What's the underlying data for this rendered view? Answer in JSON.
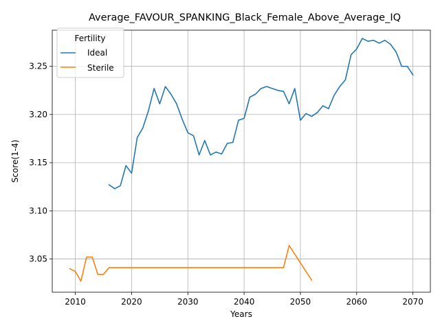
{
  "chart_data": {
    "type": "line",
    "title": "Average_FAVOUR_SPANKING_Black_Female_Above_Average_IQ",
    "xlabel": "Years",
    "ylabel": "Score(1-4)",
    "xlim": [
      2005.9,
      2073.1
    ],
    "ylim": [
      3.0155,
      3.2875
    ],
    "x_ticks": [
      2010,
      2020,
      2030,
      2040,
      2050,
      2060,
      2070
    ],
    "y_ticks": [
      3.05,
      3.1,
      3.15,
      3.2,
      3.25
    ],
    "x_tick_labels": [
      "2010",
      "2020",
      "2030",
      "2040",
      "2050",
      "2060",
      "2070"
    ],
    "y_tick_labels": [
      "3.05",
      "3.10",
      "3.15",
      "3.20",
      "3.25"
    ],
    "grid": true,
    "legend": {
      "title": "Fertility",
      "placement": "top-left"
    },
    "series": [
      {
        "name": "Ideal",
        "color": "#1f77b4",
        "x": [
          2016,
          2017,
          2018,
          2019,
          2020,
          2021,
          2022,
          2023,
          2024,
          2025,
          2026,
          2027,
          2028,
          2029,
          2030,
          2031,
          2032,
          2033,
          2034,
          2035,
          2036,
          2037,
          2038,
          2039,
          2040,
          2041,
          2042,
          2043,
          2044,
          2045,
          2046,
          2047,
          2048,
          2049,
          2050,
          2051,
          2052,
          2053,
          2054,
          2055,
          2056,
          2057,
          2058,
          2059,
          2060,
          2061,
          2062,
          2063,
          2064,
          2065,
          2066,
          2067,
          2068,
          2069,
          2070
        ],
        "y": [
          3.127,
          3.123,
          3.126,
          3.147,
          3.139,
          3.176,
          3.186,
          3.204,
          3.227,
          3.211,
          3.229,
          3.221,
          3.211,
          3.195,
          3.181,
          3.178,
          3.158,
          3.173,
          3.158,
          3.161,
          3.159,
          3.17,
          3.171,
          3.194,
          3.196,
          3.218,
          3.221,
          3.227,
          3.229,
          3.227,
          3.225,
          3.224,
          3.211,
          3.227,
          3.194,
          3.201,
          3.198,
          3.202,
          3.209,
          3.206,
          3.22,
          3.229,
          3.236,
          3.262,
          3.268,
          3.279,
          3.276,
          3.277,
          3.274,
          3.277,
          3.273,
          3.265,
          3.25,
          3.25,
          3.241
        ]
      },
      {
        "name": "Sterile",
        "color": "#ff7f0e",
        "x": [
          2009,
          2010,
          2011,
          2012,
          2013,
          2014,
          2015,
          2016,
          2017,
          2018,
          2019,
          2020,
          2021,
          2022,
          2023,
          2024,
          2025,
          2026,
          2027,
          2028,
          2029,
          2030,
          2031,
          2032,
          2033,
          2034,
          2035,
          2036,
          2037,
          2038,
          2039,
          2040,
          2041,
          2042,
          2043,
          2044,
          2045,
          2046,
          2047,
          2048,
          2052
        ],
        "y": [
          3.04,
          3.037,
          3.027,
          3.052,
          3.052,
          3.034,
          3.034,
          3.041,
          3.041,
          3.041,
          3.041,
          3.041,
          3.041,
          3.041,
          3.041,
          3.041,
          3.041,
          3.041,
          3.041,
          3.041,
          3.041,
          3.041,
          3.041,
          3.041,
          3.041,
          3.041,
          3.041,
          3.041,
          3.041,
          3.041,
          3.041,
          3.041,
          3.041,
          3.041,
          3.041,
          3.041,
          3.041,
          3.041,
          3.041,
          3.064,
          3.028
        ]
      }
    ]
  }
}
